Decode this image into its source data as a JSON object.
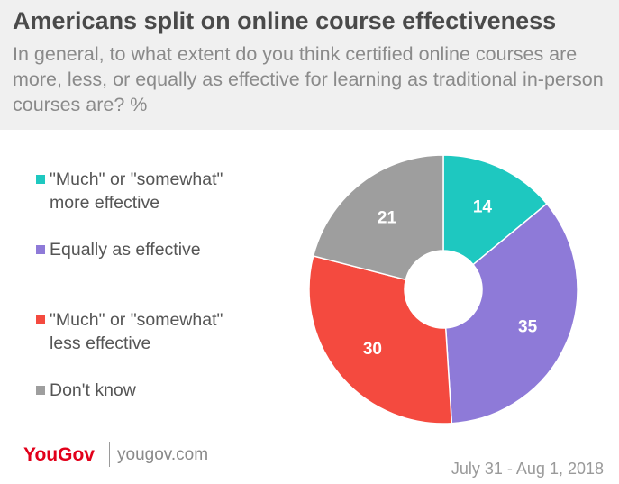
{
  "header": {
    "title": "Americans split on online course effectiveness",
    "subtitle": "In general, to what extent do you think certified online courses are more, less, or equally as effective for learning as traditional in-person courses are? %"
  },
  "chart_data": {
    "type": "pie",
    "donut": true,
    "categories": [
      "\"Much\" or \"somewhat\" more effective",
      "Equally as effective",
      "\"Much\" or \"somewhat\" less effective",
      "Don't know"
    ],
    "values": [
      14,
      35,
      30,
      21
    ],
    "colors": [
      "#1ec8c0",
      "#8e7ad8",
      "#f44a3f",
      "#9e9e9e"
    ],
    "legend_position": "left",
    "start": "top, clockwise"
  },
  "legend": [
    {
      "line1": "\"Much\" or \"somewhat\"",
      "line2": "more effective"
    },
    {
      "line1": "Equally as effective",
      "line2": ""
    },
    {
      "line1": "\"Much\" or \"somewhat\"",
      "line2": "less effective"
    },
    {
      "line1": "Don't know",
      "line2": ""
    }
  ],
  "footer": {
    "brand": "YouGov",
    "site": "yougov.com",
    "date": "July 31 - Aug 1, 2018"
  }
}
